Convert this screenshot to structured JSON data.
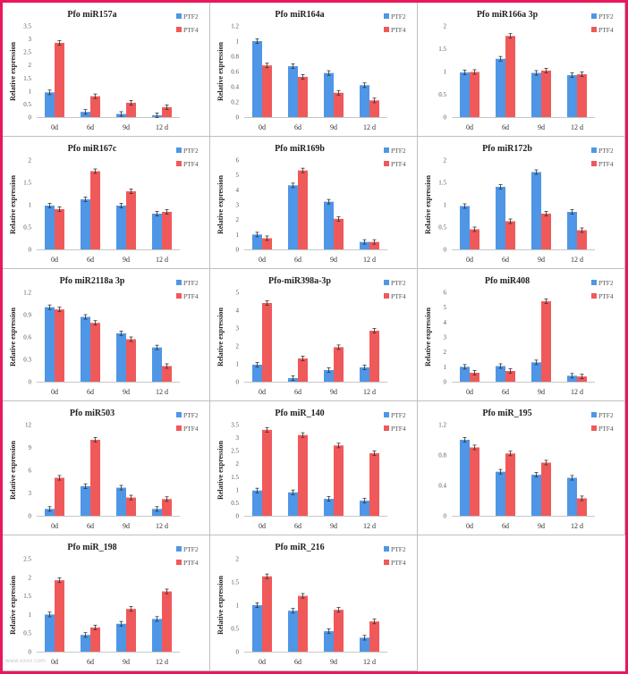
{
  "colors": {
    "ptf2": "#4f96e6",
    "ptf4": "#f0595a",
    "frame": "#e8185a",
    "grid_line": "#bfbfbf"
  },
  "legend": [
    "PTF2",
    "PTF4"
  ],
  "ylabel": "Relative expression",
  "categories": [
    "0d",
    "6d",
    "9d",
    "12 d"
  ],
  "chart_data": [
    {
      "type": "bar",
      "title": "Pfo miR157a",
      "categories": [
        "0d",
        "6d",
        "9d",
        "12 d"
      ],
      "ylabel": "Relative expression",
      "ylim": [
        0,
        3.5
      ],
      "yticks": [
        "0",
        "0.5",
        "1",
        "1.5",
        "2",
        "2.5",
        "3",
        "3.5"
      ],
      "series": [
        {
          "name": "PTF2",
          "values": [
            0.95,
            0.2,
            0.12,
            0.07
          ]
        },
        {
          "name": "PTF4",
          "values": [
            2.85,
            0.8,
            0.55,
            0.38
          ]
        }
      ]
    },
    {
      "type": "bar",
      "title": "Pfo miR164a",
      "categories": [
        "0d",
        "6d",
        "9d",
        "12 d"
      ],
      "ylabel": "Relative expression",
      "ylim": [
        0,
        1.2
      ],
      "yticks": [
        "0",
        "0.2",
        "0.4",
        "0.6",
        "0.8",
        "1",
        "1.2"
      ],
      "series": [
        {
          "name": "PTF2",
          "values": [
            1.0,
            0.67,
            0.58,
            0.42
          ]
        },
        {
          "name": "PTF4",
          "values": [
            0.68,
            0.53,
            0.32,
            0.22
          ]
        }
      ]
    },
    {
      "type": "bar",
      "title": "Pfo miR166a 3p",
      "categories": [
        "0d",
        "6d",
        "9d",
        "12 d"
      ],
      "ylabel": "",
      "ylim": [
        0,
        2
      ],
      "yticks": [
        "0",
        "0.5",
        "1",
        "1.5",
        "2"
      ],
      "series": [
        {
          "name": "PTF2",
          "values": [
            0.98,
            1.28,
            0.97,
            0.92
          ]
        },
        {
          "name": "PTF4",
          "values": [
            0.99,
            1.78,
            1.02,
            0.94
          ]
        }
      ]
    },
    {
      "type": "bar",
      "title": "Pfo miR167c",
      "categories": [
        "0d",
        "6d",
        "9d",
        "12 d"
      ],
      "ylabel": "Relative expression",
      "ylim": [
        0,
        2
      ],
      "yticks": [
        "0",
        "0.5",
        "1",
        "1.5",
        "2"
      ],
      "series": [
        {
          "name": "PTF2",
          "values": [
            0.98,
            1.12,
            0.98,
            0.8
          ]
        },
        {
          "name": "PTF4",
          "values": [
            0.9,
            1.75,
            1.3,
            0.84
          ]
        }
      ]
    },
    {
      "type": "bar",
      "title": "Pfo miR169b",
      "categories": [
        "0d",
        "6d",
        "9d",
        "12 d"
      ],
      "ylabel": "Relative expression",
      "ylim": [
        0,
        6
      ],
      "yticks": [
        "0",
        "1",
        "2",
        "3",
        "4",
        "5",
        "6"
      ],
      "series": [
        {
          "name": "PTF2",
          "values": [
            1.0,
            4.3,
            3.2,
            0.5
          ]
        },
        {
          "name": "PTF4",
          "values": [
            0.75,
            5.3,
            2.05,
            0.5
          ]
        }
      ]
    },
    {
      "type": "bar",
      "title": "Pfo miR172b",
      "categories": [
        "0d",
        "6d",
        "9d",
        "12 d"
      ],
      "ylabel": "Relative expression",
      "ylim": [
        0,
        2
      ],
      "yticks": [
        "0",
        "0.5",
        "1",
        "1.5",
        "2"
      ],
      "series": [
        {
          "name": "PTF2",
          "values": [
            0.97,
            1.4,
            1.73,
            0.84
          ]
        },
        {
          "name": "PTF4",
          "values": [
            0.45,
            0.63,
            0.8,
            0.43
          ]
        }
      ]
    },
    {
      "type": "bar",
      "title": "Pfo miR2118a 3p",
      "categories": [
        "0d",
        "6d",
        "9d",
        "12 d"
      ],
      "ylabel": "Relative expression",
      "ylim": [
        0,
        1.2
      ],
      "yticks": [
        "0",
        "0.3",
        "0.6",
        "0.9",
        "1.2"
      ],
      "series": [
        {
          "name": "PTF2",
          "values": [
            1.0,
            0.87,
            0.65,
            0.46
          ]
        },
        {
          "name": "PTF4",
          "values": [
            0.97,
            0.79,
            0.57,
            0.21
          ]
        }
      ]
    },
    {
      "type": "bar",
      "title": "Pfo-miR398a-3p",
      "categories": [
        "0d",
        "6d",
        "9d",
        "12 d"
      ],
      "ylabel": "Relative expression",
      "ylim": [
        0,
        5
      ],
      "yticks": [
        "0",
        "1",
        "2",
        "3",
        "4",
        "5"
      ],
      "series": [
        {
          "name": "PTF2",
          "values": [
            0.95,
            0.2,
            0.65,
            0.8
          ]
        },
        {
          "name": "PTF4",
          "values": [
            4.4,
            1.3,
            1.93,
            2.85
          ]
        }
      ]
    },
    {
      "type": "bar",
      "title": "Pfo miR408",
      "categories": [
        "0d",
        "6d",
        "9d",
        "12 d"
      ],
      "ylabel": "Relative expression",
      "ylim": [
        0,
        6
      ],
      "yticks": [
        "0",
        "1",
        "2",
        "3",
        "4",
        "5",
        "6"
      ],
      "series": [
        {
          "name": "PTF2",
          "values": [
            1.0,
            1.05,
            1.3,
            0.4
          ]
        },
        {
          "name": "PTF4",
          "values": [
            0.6,
            0.72,
            5.4,
            0.35
          ]
        }
      ]
    },
    {
      "type": "bar",
      "title": "Pfo miR503",
      "categories": [
        "0d",
        "6d",
        "9d",
        "12 d"
      ],
      "ylabel": "Relative expression",
      "ylim": [
        0,
        12
      ],
      "yticks": [
        "0",
        "3",
        "6",
        "9",
        "12"
      ],
      "series": [
        {
          "name": "PTF2",
          "values": [
            0.9,
            3.9,
            3.7,
            0.9
          ]
        },
        {
          "name": "PTF4",
          "values": [
            5.0,
            10.0,
            2.4,
            2.2
          ]
        }
      ]
    },
    {
      "type": "bar",
      "title": "Pfo miR_140",
      "categories": [
        "0d",
        "6d",
        "9d",
        "12 d"
      ],
      "ylabel": "Relative expression",
      "ylim": [
        0,
        3.5
      ],
      "yticks": [
        "0",
        "0.5",
        "1",
        "1.5",
        "2",
        "2.5",
        "3",
        "3.5"
      ],
      "series": [
        {
          "name": "PTF2",
          "values": [
            0.97,
            0.9,
            0.65,
            0.58
          ]
        },
        {
          "name": "PTF4",
          "values": [
            3.3,
            3.1,
            2.7,
            2.4
          ]
        }
      ]
    },
    {
      "type": "bar",
      "title": "Pfo miR_195",
      "categories": [
        "0d",
        "6d",
        "9d",
        "12 d"
      ],
      "ylabel": "",
      "ylim": [
        0,
        1.2
      ],
      "yticks": [
        "0",
        "0.4",
        "0.8",
        "1.2"
      ],
      "series": [
        {
          "name": "PTF2",
          "values": [
            1.0,
            0.58,
            0.54,
            0.5
          ]
        },
        {
          "name": "PTF4",
          "values": [
            0.9,
            0.82,
            0.7,
            0.23
          ]
        }
      ]
    },
    {
      "type": "bar",
      "title": "Pfo miR_198",
      "categories": [
        "0d",
        "6d",
        "9d",
        "12 d"
      ],
      "ylabel": "Relative expression",
      "ylim": [
        0,
        2.5
      ],
      "yticks": [
        "0",
        "0.5",
        "1",
        "1.5",
        "2",
        "2.5"
      ],
      "series": [
        {
          "name": "PTF2",
          "values": [
            1.0,
            0.45,
            0.75,
            0.88
          ]
        },
        {
          "name": "PTF4",
          "values": [
            1.92,
            0.65,
            1.15,
            1.62
          ]
        }
      ]
    },
    {
      "type": "bar",
      "title": "Pfo miR_216",
      "categories": [
        "0d",
        "6d",
        "9d",
        "12 d"
      ],
      "ylabel": "Relative expression",
      "ylim": [
        0,
        2
      ],
      "yticks": [
        "0",
        "0.5",
        "1",
        "1.5",
        "2"
      ],
      "series": [
        {
          "name": "PTF2",
          "values": [
            1.0,
            0.88,
            0.44,
            0.3
          ]
        },
        {
          "name": "PTF4",
          "values": [
            1.62,
            1.2,
            0.9,
            0.65
          ]
        }
      ]
    }
  ]
}
